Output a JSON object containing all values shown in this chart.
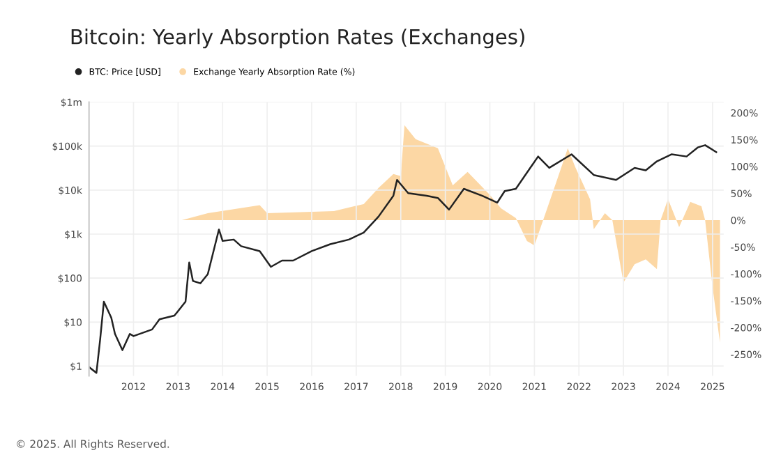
{
  "chart_data": {
    "type": "line",
    "title": "Bitcoin: Yearly Absorption Rates (Exchanges)",
    "annotations": [
      "© 2025. All Rights Reserved."
    ],
    "legend": "top left",
    "grid": true,
    "log": "y",
    "xlim": [
      "2011-01",
      "2025-04"
    ],
    "xticks": [
      "2012",
      "2013",
      "2014",
      "2015",
      "2016",
      "2017",
      "2018",
      "2019",
      "2020",
      "2021",
      "2022",
      "2023",
      "2024",
      "2025"
    ],
    "ylim": [
      0.6,
      1000000
    ],
    "yticks": [
      {
        "value": 1,
        "label": "$1"
      },
      {
        "value": 10,
        "label": "$10"
      },
      {
        "value": 100,
        "label": "$100"
      },
      {
        "value": 1000,
        "label": "$1k"
      },
      {
        "value": 10000,
        "label": "$10k"
      },
      {
        "value": 100000,
        "label": "$100k"
      },
      {
        "value": 1000000,
        "label": "$1m"
      }
    ],
    "y2lim": [
      -290,
      220
    ],
    "y2ticks": [
      {
        "value": 200,
        "label": "200%"
      },
      {
        "value": 150,
        "label": "150%"
      },
      {
        "value": 100,
        "label": "100%"
      },
      {
        "value": 50,
        "label": "50%"
      },
      {
        "value": 0,
        "label": "0%"
      },
      {
        "value": -50,
        "label": "-50%"
      },
      {
        "value": -100,
        "label": "-100%"
      },
      {
        "value": -150,
        "label": "-150%"
      },
      {
        "value": -200,
        "label": "-200%"
      },
      {
        "value": -250,
        "label": "-250%"
      }
    ],
    "series": [
      {
        "name": "Exchange Yearly Absorption Rate (%)",
        "type": "area",
        "axis": "y2",
        "color": "#fcd7a4",
        "x": [
          "2013-02",
          "2013-09",
          "2014-11",
          "2015-01",
          "2016-07",
          "2017-03",
          "2017-07",
          "2017-11",
          "2018-01",
          "2018-02",
          "2018-05",
          "2018-11",
          "2019-03",
          "2019-07",
          "2020-01",
          "2020-04",
          "2020-08",
          "2020-11",
          "2021-01",
          "2021-04",
          "2021-07",
          "2021-10",
          "2021-12",
          "2022-04",
          "2022-05",
          "2022-08",
          "2022-10",
          "2023-01",
          "2023-04",
          "2023-07",
          "2023-10",
          "2023-11",
          "2024-01",
          "2024-02",
          "2024-04",
          "2024-07",
          "2024-10",
          "2024-11",
          "2025-01",
          "2025-03"
        ],
        "values": [
          0,
          13,
          28,
          13,
          17,
          30,
          60,
          86,
          82,
          177,
          151,
          134,
          65,
          90,
          47,
          22,
          4,
          -39,
          -47,
          13,
          73,
          134,
          99,
          39,
          -17,
          13,
          0,
          -116,
          -82,
          -73,
          -91,
          0,
          39,
          22,
          -13,
          34,
          26,
          0,
          -125,
          -228
        ]
      },
      {
        "name": "BTC: Price [USD]",
        "color": "#222222",
        "x": [
          "2011-01",
          "2011-03",
          "2011-04",
          "2011-05",
          "2011-07",
          "2011-08",
          "2011-10",
          "2011-12",
          "2012-01",
          "2012-06",
          "2012-08",
          "2012-12",
          "2013-03",
          "2013-04",
          "2013-05",
          "2013-07",
          "2013-09",
          "2013-12",
          "2014-01",
          "2014-04",
          "2014-06",
          "2014-11",
          "2015-02",
          "2015-05",
          "2015-08",
          "2016-01",
          "2016-06",
          "2016-11",
          "2017-03",
          "2017-07",
          "2017-11",
          "2017-12",
          "2018-03",
          "2018-08",
          "2018-11",
          "2019-02",
          "2019-06",
          "2019-11",
          "2020-03",
          "2020-05",
          "2020-08",
          "2021-02",
          "2021-05",
          "2021-11",
          "2022-05",
          "2022-11",
          "2023-04",
          "2023-07",
          "2023-10",
          "2024-02",
          "2024-06",
          "2024-09",
          "2024-11",
          "2025-02"
        ],
        "values": [
          0.95,
          0.7,
          4,
          29,
          12.6,
          5.4,
          2.3,
          5.4,
          4.8,
          6.8,
          11.6,
          14,
          29,
          226,
          86,
          76,
          123,
          1270,
          700,
          750,
          530,
          410,
          180,
          250,
          250,
          410,
          590,
          750,
          1080,
          2500,
          7400,
          17000,
          8500,
          7400,
          6600,
          3600,
          10700,
          7400,
          5200,
          9500,
          10700,
          58000,
          32000,
          65000,
          22000,
          17000,
          32000,
          28000,
          45000,
          65000,
          58000,
          93000,
          105000,
          73000
        ]
      }
    ]
  }
}
